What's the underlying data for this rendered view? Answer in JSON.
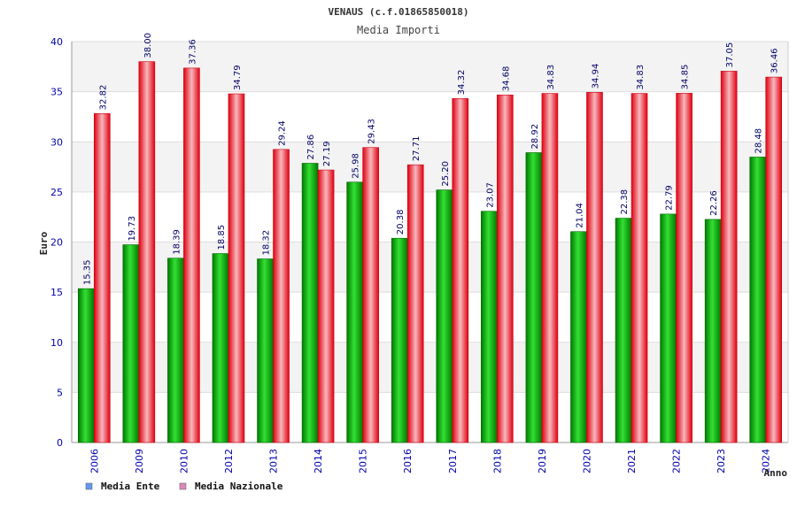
{
  "chart_data": {
    "type": "bar",
    "title": "VENAUS (c.f.01865850018)",
    "subtitle": "Media Importi",
    "xlabel": "Anno",
    "ylabel": "Euro",
    "ylim": [
      0,
      40
    ],
    "yticks": [
      "0",
      "5",
      "10",
      "15",
      "20",
      "25",
      "30",
      "35",
      "40"
    ],
    "categories": [
      "2006",
      "2009",
      "2010",
      "2012",
      "2013",
      "2014",
      "2015",
      "2016",
      "2017",
      "2018",
      "2019",
      "2020",
      "2021",
      "2022",
      "2023",
      "2024"
    ],
    "series": [
      {
        "name": "Media Ente",
        "legend_color": "#6699ee",
        "values": [
          15.35,
          19.73,
          18.39,
          18.85,
          18.32,
          27.86,
          25.98,
          20.38,
          25.2,
          23.07,
          28.92,
          21.04,
          22.38,
          22.79,
          22.26,
          28.48
        ],
        "labels": [
          "15.35",
          "19.73",
          "18.39",
          "18.85",
          "18.32",
          "27.86",
          "25.98",
          "20.38",
          "25.20",
          "23.07",
          "28.92",
          "21.04",
          "22.38",
          "22.79",
          "22.26",
          "28.48"
        ]
      },
      {
        "name": "Media Nazionale",
        "legend_color": "#dd88bb",
        "values": [
          32.82,
          38.0,
          37.36,
          34.79,
          29.24,
          27.19,
          29.43,
          27.71,
          34.32,
          34.68,
          34.83,
          34.94,
          34.83,
          34.85,
          37.05,
          36.46
        ],
        "labels": [
          "32.82",
          "38.00",
          "37.36",
          "34.79",
          "29.24",
          "27.19",
          "29.43",
          "27.71",
          "34.32",
          "34.68",
          "34.83",
          "34.94",
          "34.83",
          "34.85",
          "37.05",
          "36.46"
        ]
      }
    ],
    "grid": true,
    "legend_position": "bottom-left"
  },
  "colors": {
    "band_light": "#f3f3f3",
    "band_white": "#ffffff",
    "axis": "#999999"
  }
}
